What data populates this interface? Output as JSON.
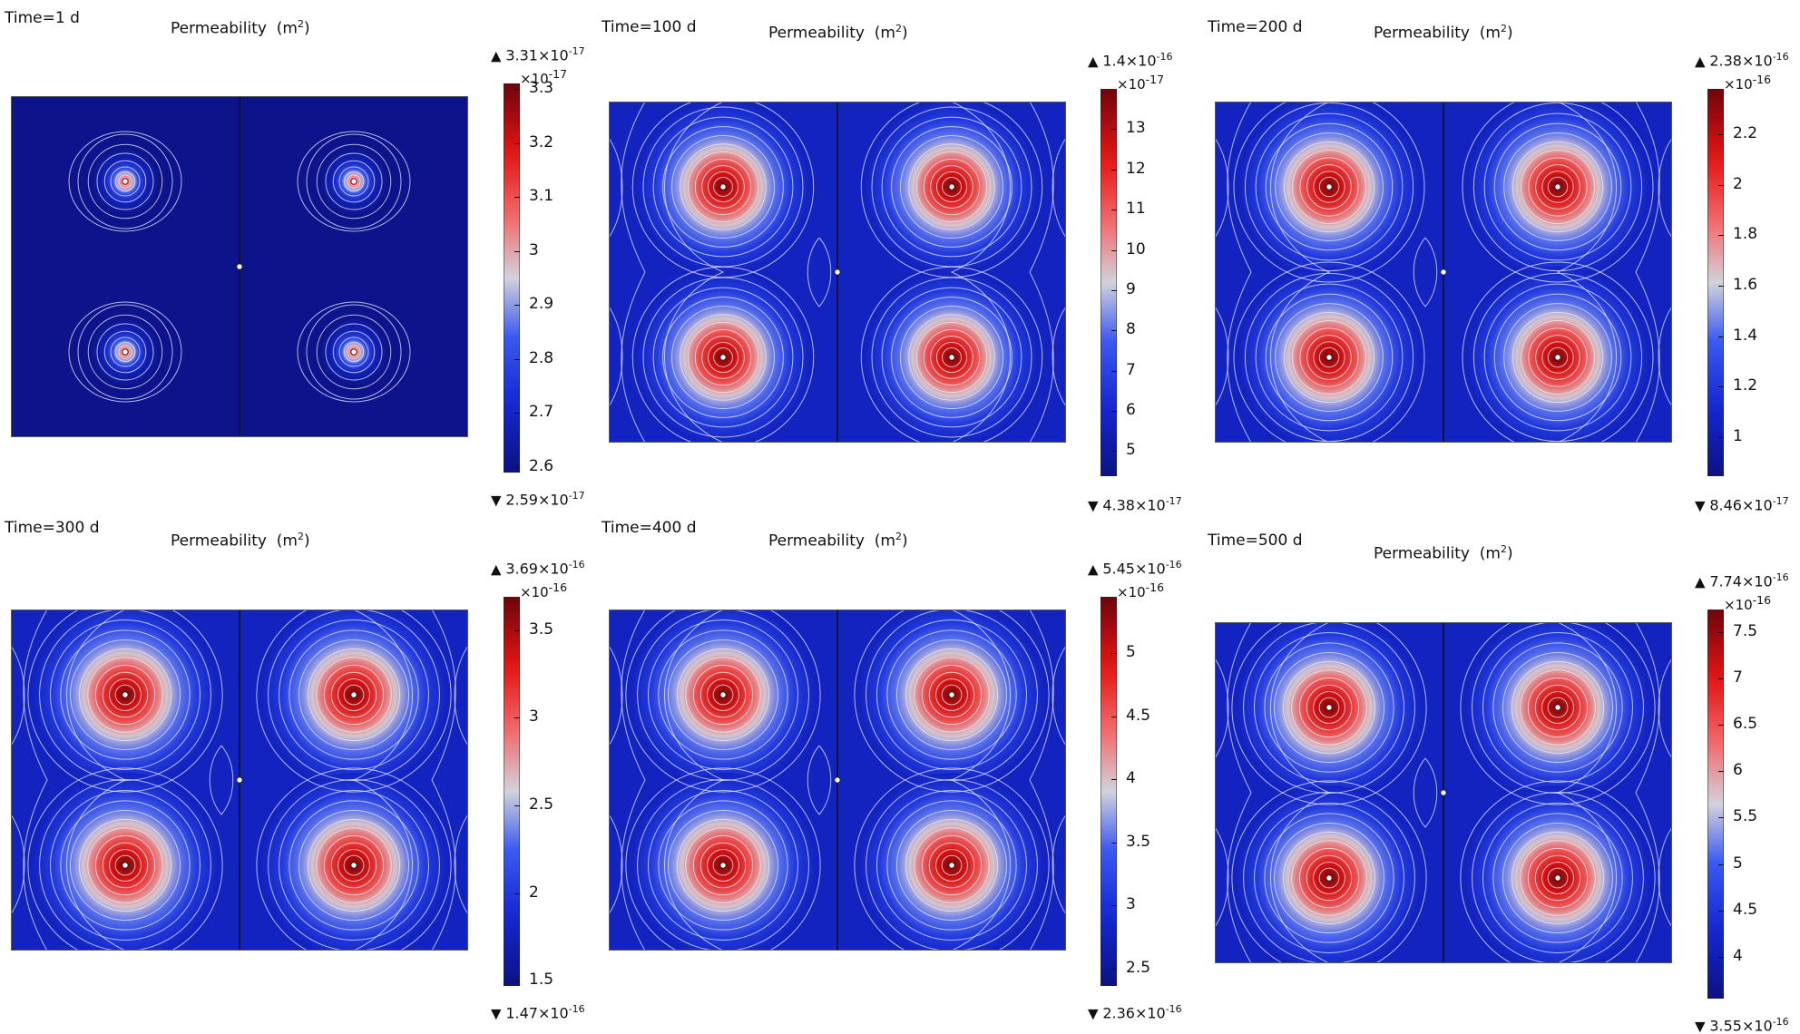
{
  "chart_data": [
    {
      "type": "heatmap",
      "time_label": "Time=1 d",
      "title": "Permeability",
      "unit_base": "(m",
      "unit_sup": "2",
      "unit_close": ")",
      "colorbar": {
        "max_label": "3.31×10",
        "max_exp": "-17",
        "min_label": "2.59×10",
        "min_exp": "-17",
        "scale_label": "×10",
        "scale_exp": "-17",
        "ticks": [
          "3.3",
          "3.2",
          "3.1",
          "3",
          "2.9",
          "2.8",
          "2.7",
          "2.6"
        ],
        "tick_values": [
          3.3,
          3.2,
          3.1,
          3.0,
          2.9,
          2.8,
          2.7,
          2.6
        ],
        "range": [
          2.59,
          3.31
        ]
      },
      "sources": "4 wells + 1 center point",
      "spread": 0.15
    },
    {
      "type": "heatmap",
      "time_label": "Time=100 d",
      "title": "Permeability",
      "unit_base": "(m",
      "unit_sup": "2",
      "unit_close": ")",
      "colorbar": {
        "max_label": "1.4×10",
        "max_exp": "-16",
        "min_label": "4.38×10",
        "min_exp": "-17",
        "scale_label": "×10",
        "scale_exp": "-17",
        "ticks": [
          "13",
          "12",
          "11",
          "10",
          "9",
          "8",
          "7",
          "6",
          "5"
        ],
        "tick_values": [
          13,
          12,
          11,
          10,
          9,
          8,
          7,
          6,
          5
        ],
        "range": [
          4.38,
          14.0
        ]
      },
      "spread": 0.55
    },
    {
      "type": "heatmap",
      "time_label": "Time=200 d",
      "title": "Permeability",
      "unit_base": "(m",
      "unit_sup": "2",
      "unit_close": ")",
      "colorbar": {
        "max_label": "2.38×10",
        "max_exp": "-16",
        "min_label": "8.46×10",
        "min_exp": "-17",
        "scale_label": "×10",
        "scale_exp": "-16",
        "ticks": [
          "2.2",
          "2",
          "1.8",
          "1.6",
          "1.4",
          "1.2",
          "1"
        ],
        "tick_values": [
          2.2,
          2.0,
          1.8,
          1.6,
          1.4,
          1.2,
          1.0
        ],
        "range": [
          0.846,
          2.38
        ]
      },
      "spread": 0.6
    },
    {
      "type": "heatmap",
      "time_label": "Time=300 d",
      "title": "Permeability",
      "unit_base": "(m",
      "unit_sup": "2",
      "unit_close": ")",
      "colorbar": {
        "max_label": "3.69×10",
        "max_exp": "-16",
        "min_label": "1.47×10",
        "min_exp": "-16",
        "scale_label": "×10",
        "scale_exp": "-16",
        "ticks": [
          "3.5",
          "3",
          "2.5",
          "2",
          "1.5"
        ],
        "tick_values": [
          3.5,
          3.0,
          2.5,
          2.0,
          1.5
        ],
        "range": [
          1.47,
          3.69
        ]
      },
      "spread": 0.62
    },
    {
      "type": "heatmap",
      "time_label": "Time=400 d",
      "title": "Permeability",
      "unit_base": "(m",
      "unit_sup": "2",
      "unit_close": ")",
      "colorbar": {
        "max_label": "5.45×10",
        "max_exp": "-16",
        "min_label": "2.36×10",
        "min_exp": "-16",
        "scale_label": "×10",
        "scale_exp": "-16",
        "ticks": [
          "5",
          "4.5",
          "4",
          "3.5",
          "3",
          "2.5"
        ],
        "tick_values": [
          5.0,
          4.5,
          4.0,
          3.5,
          3.0,
          2.5
        ],
        "range": [
          2.36,
          5.45
        ]
      },
      "spread": 0.62
    },
    {
      "type": "heatmap",
      "time_label": "Time=500 d",
      "title": "Permeability",
      "unit_base": "(m",
      "unit_sup": "2",
      "unit_close": ")",
      "colorbar": {
        "max_label": "7.74×10",
        "max_exp": "-16",
        "min_label": "3.55×10",
        "min_exp": "-16",
        "scale_label": "×10",
        "scale_exp": "-16",
        "ticks": [
          "7.5",
          "7",
          "6.5",
          "6",
          "5.5",
          "5",
          "4.5",
          "4"
        ],
        "tick_values": [
          7.5,
          7.0,
          6.5,
          6.0,
          5.5,
          5.0,
          4.5,
          4.0
        ],
        "range": [
          3.55,
          7.74
        ]
      },
      "spread": 0.62
    }
  ]
}
